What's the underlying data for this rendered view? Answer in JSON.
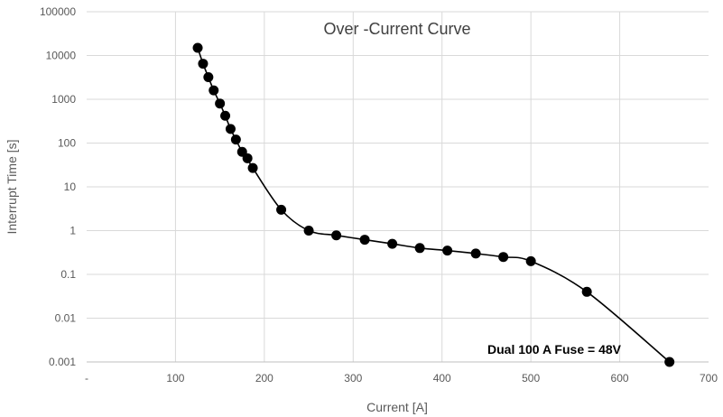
{
  "chart_data": {
    "type": "scatter",
    "title": "Over -Current Curve",
    "xlabel": "Current [A]",
    "ylabel": "Interrupt Time [s]",
    "xlim": [
      0,
      700
    ],
    "ylim": [
      0.001,
      100000
    ],
    "yscale": "log",
    "grid": true,
    "x_tick_labels": [
      "-",
      "100",
      "200",
      "300",
      "400",
      "500",
      "600",
      "700"
    ],
    "y_tick_labels": [
      "0.001",
      "0.01",
      "0.1",
      "1",
      "10",
      "100",
      "1000",
      "10000",
      "100000"
    ],
    "annotation": "Dual 100 A Fuse = 48V",
    "series": [
      {
        "color": "#000000",
        "smooth_line": true,
        "points": [
          {
            "x": 125,
            "y": 15000
          },
          {
            "x": 131,
            "y": 6500
          },
          {
            "x": 137,
            "y": 3200
          },
          {
            "x": 143,
            "y": 1600
          },
          {
            "x": 150,
            "y": 800
          },
          {
            "x": 156,
            "y": 420
          },
          {
            "x": 162,
            "y": 210
          },
          {
            "x": 168,
            "y": 120
          },
          {
            "x": 175,
            "y": 63
          },
          {
            "x": 181,
            "y": 45
          },
          {
            "x": 187,
            "y": 27
          },
          {
            "x": 219,
            "y": 3
          },
          {
            "x": 250,
            "y": 1
          },
          {
            "x": 281,
            "y": 0.78
          },
          {
            "x": 313,
            "y": 0.62
          },
          {
            "x": 344,
            "y": 0.5
          },
          {
            "x": 375,
            "y": 0.4
          },
          {
            "x": 406,
            "y": 0.35
          },
          {
            "x": 438,
            "y": 0.3
          },
          {
            "x": 469,
            "y": 0.25
          },
          {
            "x": 500,
            "y": 0.2
          },
          {
            "x": 563,
            "y": 0.04
          },
          {
            "x": 656,
            "y": 0.001
          }
        ]
      }
    ]
  }
}
